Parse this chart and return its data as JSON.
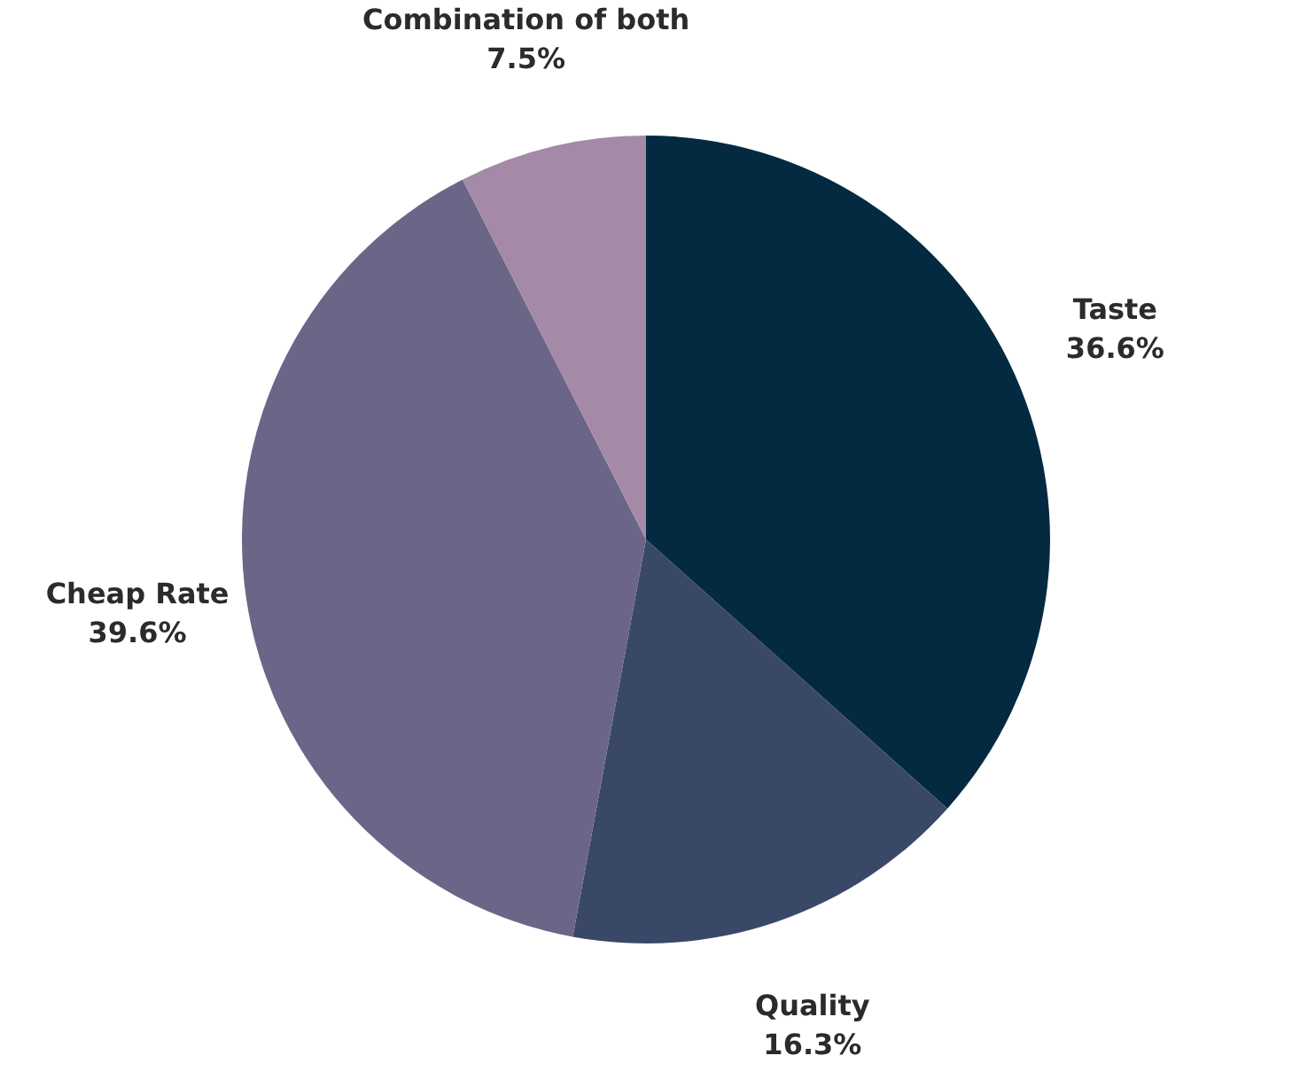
{
  "chart_data": {
    "type": "pie",
    "categories": [
      "Taste",
      "Quality",
      "Cheap Rate",
      "Combination of both"
    ],
    "values": [
      36.6,
      16.3,
      39.6,
      7.5
    ],
    "value_labels": [
      "36.6%",
      "16.3%",
      "39.6%",
      "7.5%"
    ],
    "colors": [
      "#032a40",
      "#3a4868",
      "#6b6588",
      "#a58aa8"
    ]
  }
}
